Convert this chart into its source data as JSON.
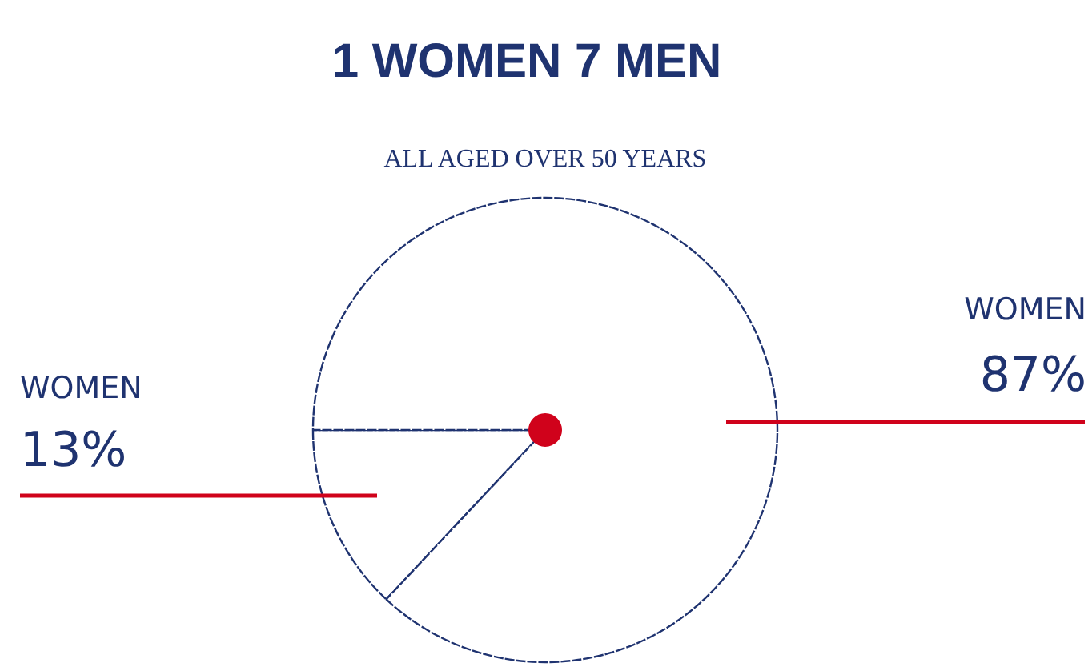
{
  "chart_data": {
    "type": "pie",
    "title": "1 WOMEN    7 MEN",
    "subtitle": "ALL AGED OVER 50 YEARS",
    "categories": [
      "WOMEN",
      "WOMEN"
    ],
    "values": [
      13,
      87
    ],
    "colors": [
      "#ffffff",
      "#ffffff"
    ],
    "value_labels": [
      "13%",
      "87%"
    ]
  }
}
